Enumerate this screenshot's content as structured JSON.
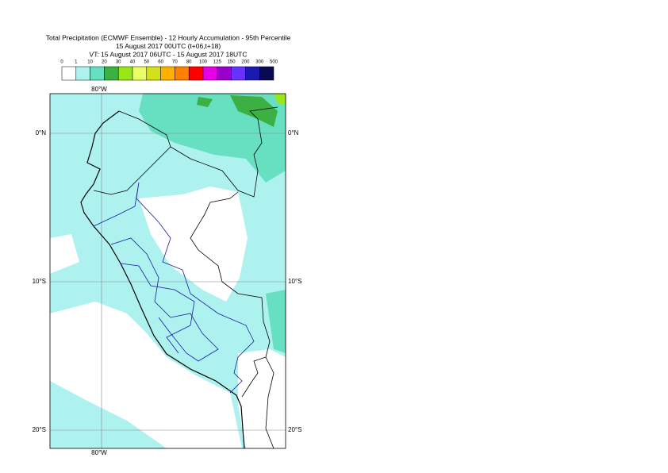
{
  "title_lines": [
    "Total Precipitation (ECMWF Ensemble) - 12 Hourly Accumulation - 95th Percentile",
    "15 August 2017 00UTC (t+06,t+18)",
    "VT: 15 August 2017 06UTC - 15 August 2017 18UTC"
  ],
  "legend": {
    "thresholds": [
      "0",
      "1",
      "10",
      "20",
      "30",
      "40",
      "50",
      "60",
      "70",
      "80",
      "100",
      "125",
      "150",
      "200",
      "300",
      "500"
    ],
    "colors": [
      "#ffffff",
      "#aef2f0",
      "#66e0c0",
      "#3cb043",
      "#99e619",
      "#eaff66",
      "#d4e01a",
      "#ffb000",
      "#ff7f00",
      "#ff0000",
      "#e600e6",
      "#9900cc",
      "#6633ff",
      "#1a1ab3",
      "#0a0a50"
    ]
  },
  "map": {
    "longitude_labels": [
      "80°W"
    ],
    "latitude_labels": [
      "0°N",
      "10°S",
      "20°S"
    ]
  }
}
